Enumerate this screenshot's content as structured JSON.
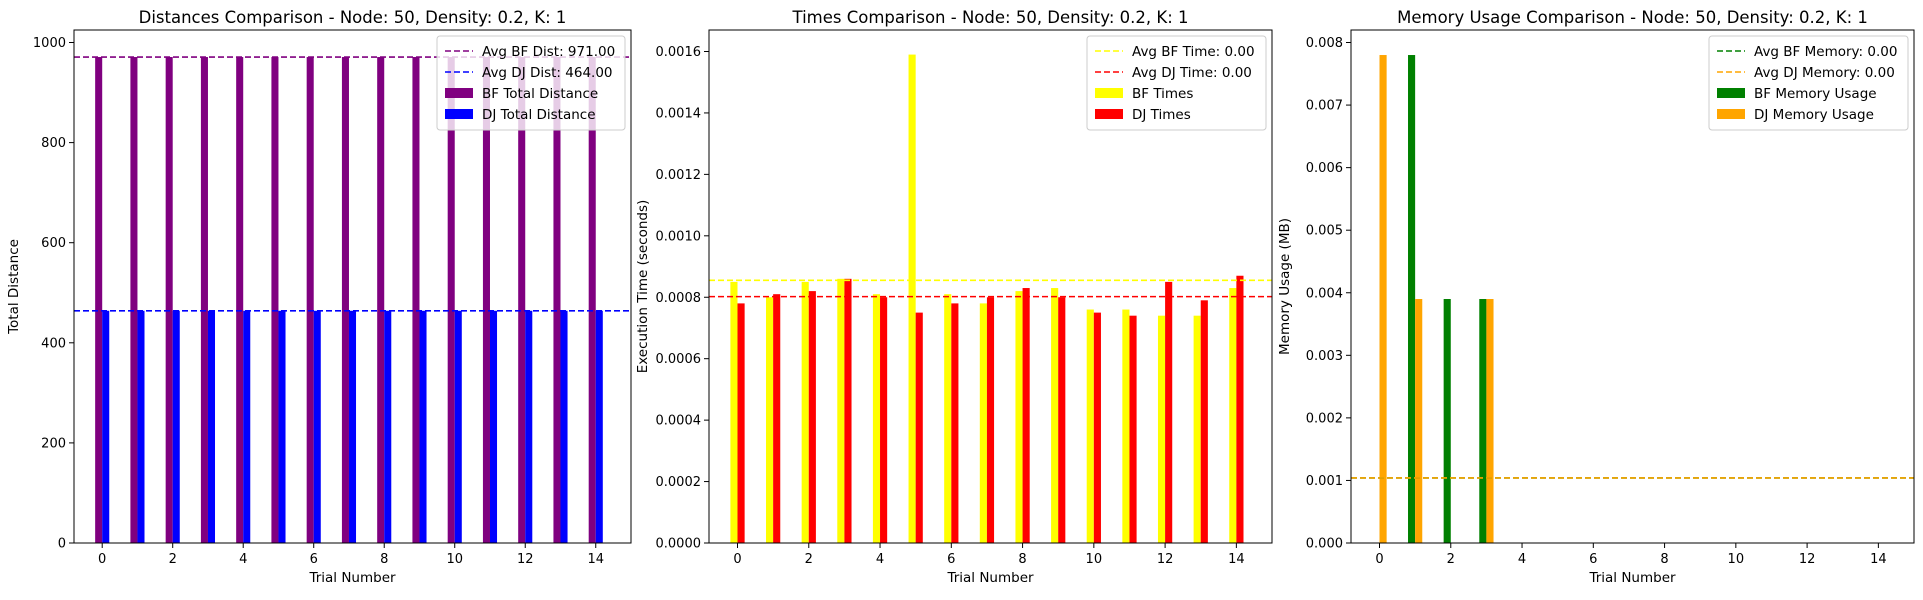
{
  "colors": {
    "bf_distance": "#800080",
    "dj_distance": "#0000ff",
    "bf_time": "#ffff00",
    "dj_time": "#ff0000",
    "bf_memory": "#008000",
    "dj_memory": "#ffa500"
  },
  "chart_data": [
    {
      "type": "bar",
      "title": "Distances Comparison - Node: 50, Density: 0.2, K: 1",
      "xlabel": "Trial Number",
      "ylabel": "Total Distance",
      "x": [
        0,
        1,
        2,
        3,
        4,
        5,
        6,
        7,
        8,
        9,
        10,
        11,
        12,
        13,
        14
      ],
      "xlim": [
        -0.8,
        15
      ],
      "ylim": [
        0,
        1025
      ],
      "xticks": [
        0,
        2,
        4,
        6,
        8,
        10,
        12,
        14
      ],
      "xtick_labels": [
        "0",
        "2",
        "4",
        "6",
        "8",
        "10",
        "12",
        "14"
      ],
      "yticks": [
        0,
        200,
        400,
        600,
        800,
        1000
      ],
      "ytick_labels": [
        "0",
        "200",
        "400",
        "600",
        "800",
        "1000"
      ],
      "legend_position": "top-right",
      "series": [
        {
          "name": "BF Total Distance",
          "color": "#800080",
          "values": [
            971,
            971,
            971,
            971,
            971,
            971,
            971,
            971,
            971,
            971,
            971,
            971,
            971,
            971,
            971
          ]
        },
        {
          "name": "DJ Total Distance",
          "color": "#0000ff",
          "values": [
            464,
            464,
            464,
            464,
            464,
            464,
            464,
            464,
            464,
            464,
            464,
            464,
            464,
            464,
            464
          ]
        }
      ],
      "hlines": [
        {
          "name": "Avg BF Dist: 971.00",
          "value": 971,
          "color": "#800080"
        },
        {
          "name": "Avg DJ Dist: 464.00",
          "value": 464,
          "color": "#0000ff"
        }
      ],
      "grid": false
    },
    {
      "type": "bar",
      "title": "Times Comparison - Node: 50, Density: 0.2, K: 1",
      "xlabel": "Trial Number",
      "ylabel": "Execution Time (seconds)",
      "x": [
        0,
        1,
        2,
        3,
        4,
        5,
        6,
        7,
        8,
        9,
        10,
        11,
        12,
        13,
        14
      ],
      "xlim": [
        -0.8,
        15
      ],
      "ylim": [
        0,
        0.00167
      ],
      "xticks": [
        0,
        2,
        4,
        6,
        8,
        10,
        12,
        14
      ],
      "xtick_labels": [
        "0",
        "2",
        "4",
        "6",
        "8",
        "10",
        "12",
        "14"
      ],
      "yticks": [
        0,
        0.0002,
        0.0004,
        0.0006,
        0.0008,
        0.001,
        0.0012,
        0.0014,
        0.0016
      ],
      "ytick_labels": [
        "0.0000",
        "0.0002",
        "0.0004",
        "0.0006",
        "0.0008",
        "0.0010",
        "0.0012",
        "0.0014",
        "0.0016"
      ],
      "legend_position": "top-right",
      "series": [
        {
          "name": "BF Times",
          "color": "#ffff00",
          "values": [
            0.00085,
            0.0008,
            0.00085,
            0.00086,
            0.00081,
            0.00159,
            0.00081,
            0.00078,
            0.00082,
            0.00083,
            0.00076,
            0.00076,
            0.00074,
            0.00074,
            0.00083
          ]
        },
        {
          "name": "DJ Times",
          "color": "#ff0000",
          "values": [
            0.00078,
            0.00081,
            0.00082,
            0.00086,
            0.0008,
            0.00075,
            0.00078,
            0.0008,
            0.00083,
            0.0008,
            0.00075,
            0.00074,
            0.00085,
            0.00079,
            0.00087
          ]
        }
      ],
      "hlines": [
        {
          "name": "Avg BF Time: 0.00",
          "value": 0.000855,
          "color": "#ffff00"
        },
        {
          "name": "Avg DJ Time: 0.00",
          "value": 0.000802,
          "color": "#ff0000"
        }
      ],
      "grid": false
    },
    {
      "type": "bar",
      "title": "Memory Usage Comparison - Node: 50, Density: 0.2, K: 1",
      "xlabel": "Trial Number",
      "ylabel": "Memory Usage (MB)",
      "x": [
        0,
        1,
        2,
        3,
        4,
        5,
        6,
        7,
        8,
        9,
        10,
        11,
        12,
        13,
        14
      ],
      "xlim": [
        -0.8,
        15
      ],
      "ylim": [
        0,
        0.0082
      ],
      "xticks": [
        0,
        2,
        4,
        6,
        8,
        10,
        12,
        14
      ],
      "xtick_labels": [
        "0",
        "2",
        "4",
        "6",
        "8",
        "10",
        "12",
        "14"
      ],
      "yticks": [
        0,
        0.001,
        0.002,
        0.003,
        0.004,
        0.005,
        0.006,
        0.007,
        0.008
      ],
      "ytick_labels": [
        "0.000",
        "0.001",
        "0.002",
        "0.003",
        "0.004",
        "0.005",
        "0.006",
        "0.007",
        "0.008"
      ],
      "legend_position": "top-right",
      "series": [
        {
          "name": "BF Memory Usage",
          "color": "#008000",
          "values": [
            0,
            0.0078,
            0.0039,
            0.0039,
            0,
            0,
            0,
            0,
            0,
            0,
            0,
            0,
            0,
            0,
            0
          ]
        },
        {
          "name": "DJ Memory Usage",
          "color": "#ffa500",
          "values": [
            0.0078,
            0.0039,
            0,
            0.0039,
            0,
            0,
            0,
            0,
            0,
            0,
            0,
            0,
            0,
            0,
            0
          ]
        }
      ],
      "hlines": [
        {
          "name": "Avg BF Memory: 0.00",
          "value": 0.00104,
          "color": "#008000"
        },
        {
          "name": "Avg DJ Memory: 0.00",
          "value": 0.00104,
          "color": "#ffa500"
        }
      ],
      "grid": false
    }
  ]
}
